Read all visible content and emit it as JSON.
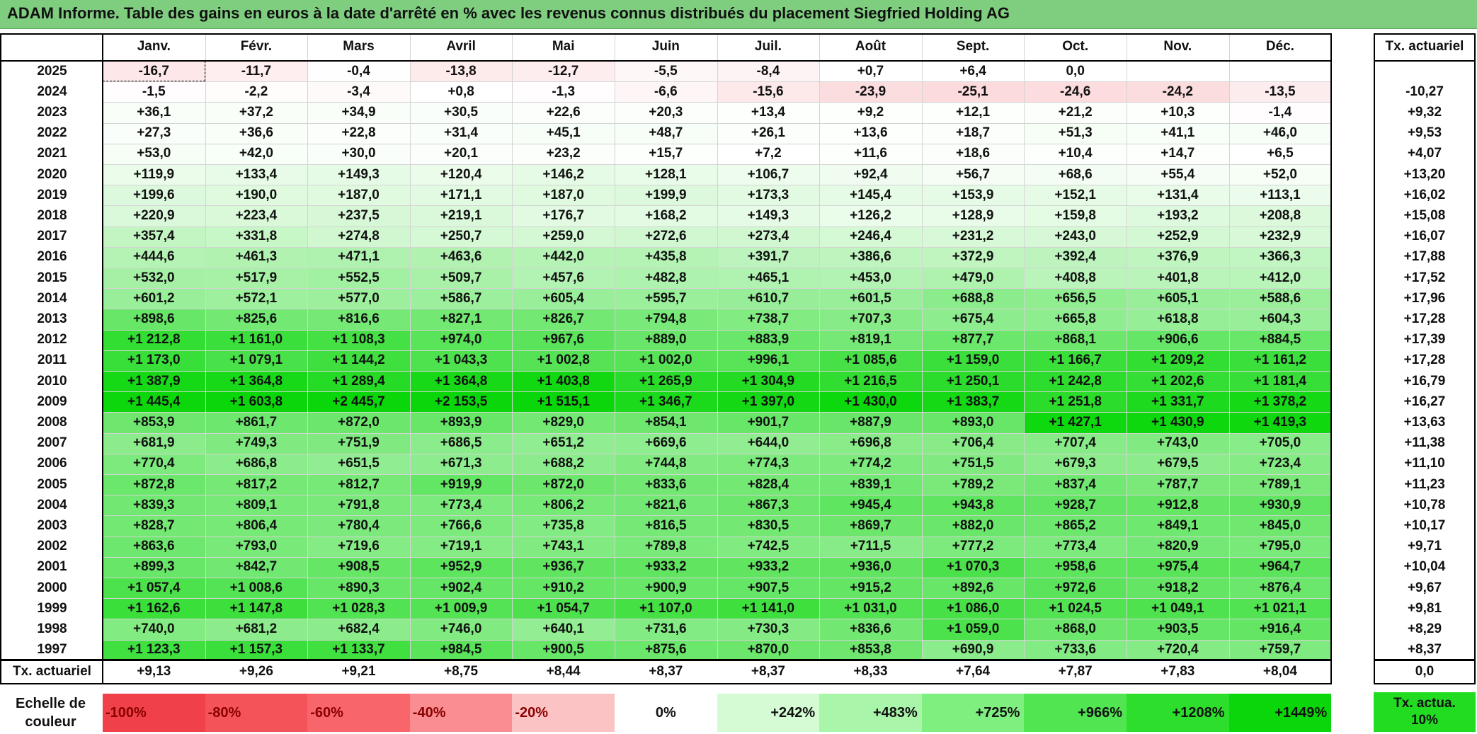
{
  "title": "ADAM Informe. Table des gains en euros à la date d'arrêté en % avec les revenus connus distribués du placement Siegfried Holding AG",
  "chart_data": {
    "type": "heatmap",
    "months": [
      "Janv.",
      "Févr.",
      "Mars",
      "Avril",
      "Mai",
      "Juin",
      "Juil.",
      "Août",
      "Sept.",
      "Oct.",
      "Nov.",
      "Déc."
    ],
    "rate_header": "Tx. actuariel",
    "rows": [
      {
        "year": "2025",
        "values": [
          "-16,7",
          "-11,7",
          "-0,4",
          "-13,8",
          "-12,7",
          "-5,5",
          "-8,4",
          "+0,7",
          "+6,4",
          "0,0",
          "",
          ""
        ],
        "rate": ""
      },
      {
        "year": "2024",
        "values": [
          "-1,5",
          "-2,2",
          "-3,4",
          "+0,8",
          "-1,3",
          "-6,6",
          "-15,6",
          "-23,9",
          "-25,1",
          "-24,6",
          "-24,2",
          "-13,5"
        ],
        "rate": "-10,27"
      },
      {
        "year": "2023",
        "values": [
          "+36,1",
          "+37,2",
          "+34,9",
          "+30,5",
          "+22,6",
          "+20,3",
          "+13,4",
          "+9,2",
          "+12,1",
          "+21,2",
          "+10,3",
          "-1,4"
        ],
        "rate": "+9,32"
      },
      {
        "year": "2022",
        "values": [
          "+27,3",
          "+36,6",
          "+22,8",
          "+31,4",
          "+45,1",
          "+48,7",
          "+26,1",
          "+13,6",
          "+18,7",
          "+51,3",
          "+41,1",
          "+46,0"
        ],
        "rate": "+9,53"
      },
      {
        "year": "2021",
        "values": [
          "+53,0",
          "+42,0",
          "+30,0",
          "+20,1",
          "+23,2",
          "+15,7",
          "+7,2",
          "+11,6",
          "+18,6",
          "+10,4",
          "+14,7",
          "+6,5"
        ],
        "rate": "+4,07"
      },
      {
        "year": "2020",
        "values": [
          "+119,9",
          "+133,4",
          "+149,3",
          "+120,4",
          "+146,2",
          "+128,1",
          "+106,7",
          "+92,4",
          "+56,7",
          "+68,6",
          "+55,4",
          "+52,0"
        ],
        "rate": "+13,20"
      },
      {
        "year": "2019",
        "values": [
          "+199,6",
          "+190,0",
          "+187,0",
          "+171,1",
          "+187,0",
          "+199,9",
          "+173,3",
          "+145,4",
          "+153,9",
          "+152,1",
          "+131,4",
          "+113,1"
        ],
        "rate": "+16,02"
      },
      {
        "year": "2018",
        "values": [
          "+220,9",
          "+223,4",
          "+237,5",
          "+219,1",
          "+176,7",
          "+168,2",
          "+149,3",
          "+126,2",
          "+128,9",
          "+159,8",
          "+193,2",
          "+208,8"
        ],
        "rate": "+15,08"
      },
      {
        "year": "2017",
        "values": [
          "+357,4",
          "+331,8",
          "+274,8",
          "+250,7",
          "+259,0",
          "+272,6",
          "+273,4",
          "+246,4",
          "+231,2",
          "+243,0",
          "+252,9",
          "+232,9"
        ],
        "rate": "+16,07"
      },
      {
        "year": "2016",
        "values": [
          "+444,6",
          "+461,3",
          "+471,1",
          "+463,6",
          "+442,0",
          "+435,8",
          "+391,7",
          "+386,6",
          "+372,9",
          "+392,4",
          "+376,9",
          "+366,3"
        ],
        "rate": "+17,88"
      },
      {
        "year": "2015",
        "values": [
          "+532,0",
          "+517,9",
          "+552,5",
          "+509,7",
          "+457,6",
          "+482,8",
          "+465,1",
          "+453,0",
          "+479,0",
          "+408,8",
          "+401,8",
          "+412,0"
        ],
        "rate": "+17,52"
      },
      {
        "year": "2014",
        "values": [
          "+601,2",
          "+572,1",
          "+577,0",
          "+586,7",
          "+605,4",
          "+595,7",
          "+610,7",
          "+601,5",
          "+688,8",
          "+656,5",
          "+605,1",
          "+588,6"
        ],
        "rate": "+17,96"
      },
      {
        "year": "2013",
        "values": [
          "+898,6",
          "+825,6",
          "+816,6",
          "+827,1",
          "+826,7",
          "+794,8",
          "+738,7",
          "+707,3",
          "+675,4",
          "+665,8",
          "+618,8",
          "+604,3"
        ],
        "rate": "+17,28"
      },
      {
        "year": "2012",
        "values": [
          "+1 212,8",
          "+1 161,0",
          "+1 108,3",
          "+974,0",
          "+967,6",
          "+889,0",
          "+883,9",
          "+819,1",
          "+877,7",
          "+868,1",
          "+906,6",
          "+884,5"
        ],
        "rate": "+17,39"
      },
      {
        "year": "2011",
        "values": [
          "+1 173,0",
          "+1 079,1",
          "+1 144,2",
          "+1 043,3",
          "+1 002,8",
          "+1 002,0",
          "+996,1",
          "+1 085,6",
          "+1 159,0",
          "+1 166,7",
          "+1 209,2",
          "+1 161,2"
        ],
        "rate": "+17,28"
      },
      {
        "year": "2010",
        "values": [
          "+1 387,9",
          "+1 364,8",
          "+1 289,4",
          "+1 364,8",
          "+1 403,8",
          "+1 265,9",
          "+1 304,9",
          "+1 216,5",
          "+1 250,1",
          "+1 242,8",
          "+1 202,6",
          "+1 181,4"
        ],
        "rate": "+16,79"
      },
      {
        "year": "2009",
        "values": [
          "+1 445,4",
          "+1 603,8",
          "+2 445,7",
          "+2 153,5",
          "+1 515,1",
          "+1 346,7",
          "+1 397,0",
          "+1 430,0",
          "+1 383,7",
          "+1 251,8",
          "+1 331,7",
          "+1 378,2"
        ],
        "rate": "+16,27"
      },
      {
        "year": "2008",
        "values": [
          "+853,9",
          "+861,7",
          "+872,0",
          "+893,9",
          "+829,0",
          "+854,1",
          "+901,7",
          "+887,9",
          "+893,0",
          "+1 427,1",
          "+1 430,9",
          "+1 419,3"
        ],
        "rate": "+13,63"
      },
      {
        "year": "2007",
        "values": [
          "+681,9",
          "+749,3",
          "+751,9",
          "+686,5",
          "+651,2",
          "+669,6",
          "+644,0",
          "+696,8",
          "+706,4",
          "+707,4",
          "+743,0",
          "+705,0"
        ],
        "rate": "+11,38"
      },
      {
        "year": "2006",
        "values": [
          "+770,4",
          "+686,8",
          "+651,5",
          "+671,3",
          "+688,2",
          "+744,8",
          "+774,3",
          "+774,2",
          "+751,5",
          "+679,3",
          "+679,5",
          "+723,4"
        ],
        "rate": "+11,10"
      },
      {
        "year": "2005",
        "values": [
          "+872,8",
          "+817,2",
          "+812,7",
          "+919,9",
          "+872,0",
          "+833,6",
          "+828,4",
          "+839,1",
          "+789,2",
          "+837,4",
          "+787,7",
          "+789,1"
        ],
        "rate": "+11,23"
      },
      {
        "year": "2004",
        "values": [
          "+839,3",
          "+809,1",
          "+791,8",
          "+773,4",
          "+806,2",
          "+821,6",
          "+867,3",
          "+945,4",
          "+943,8",
          "+928,7",
          "+912,8",
          "+930,9"
        ],
        "rate": "+10,78"
      },
      {
        "year": "2003",
        "values": [
          "+828,7",
          "+806,4",
          "+780,4",
          "+766,6",
          "+735,8",
          "+816,5",
          "+830,5",
          "+869,7",
          "+882,0",
          "+865,2",
          "+849,1",
          "+845,0"
        ],
        "rate": "+10,17"
      },
      {
        "year": "2002",
        "values": [
          "+863,6",
          "+793,0",
          "+719,6",
          "+719,1",
          "+743,1",
          "+789,8",
          "+742,5",
          "+711,5",
          "+777,2",
          "+773,4",
          "+820,9",
          "+795,0"
        ],
        "rate": "+9,71"
      },
      {
        "year": "2001",
        "values": [
          "+899,3",
          "+842,7",
          "+908,5",
          "+952,9",
          "+936,7",
          "+933,2",
          "+933,2",
          "+936,0",
          "+1 070,3",
          "+958,6",
          "+975,4",
          "+964,7"
        ],
        "rate": "+10,04"
      },
      {
        "year": "2000",
        "values": [
          "+1 057,4",
          "+1 008,6",
          "+890,3",
          "+902,4",
          "+910,2",
          "+900,9",
          "+907,5",
          "+915,2",
          "+892,6",
          "+972,6",
          "+918,2",
          "+876,4"
        ],
        "rate": "+9,67"
      },
      {
        "year": "1999",
        "values": [
          "+1 162,6",
          "+1 147,8",
          "+1 028,3",
          "+1 009,9",
          "+1 054,7",
          "+1 107,0",
          "+1 141,0",
          "+1 031,0",
          "+1 086,0",
          "+1 024,5",
          "+1 049,1",
          "+1 021,1"
        ],
        "rate": "+9,81"
      },
      {
        "year": "1998",
        "values": [
          "+740,0",
          "+681,2",
          "+682,4",
          "+746,0",
          "+640,1",
          "+731,6",
          "+730,3",
          "+836,6",
          "+1 059,0",
          "+868,0",
          "+903,5",
          "+916,4"
        ],
        "rate": "+8,29"
      },
      {
        "year": "1997",
        "values": [
          "+1 123,3",
          "+1 157,3",
          "+1 133,7",
          "+984,5",
          "+900,5",
          "+875,6",
          "+870,0",
          "+853,8",
          "+690,9",
          "+733,6",
          "+720,4",
          "+759,7"
        ],
        "rate": "+8,37"
      }
    ],
    "footer": {
      "label": "Tx. actuariel",
      "values": [
        "+9,13",
        "+9,26",
        "+9,21",
        "+8,75",
        "+8,44",
        "+8,37",
        "+8,37",
        "+8,33",
        "+7,64",
        "+7,87",
        "+7,83",
        "+8,04"
      ],
      "rate": "0,0"
    },
    "color_scale": {
      "label": "Echelle de couleur",
      "steps": [
        {
          "label": "-100%",
          "color": "#f0414a"
        },
        {
          "label": "-80%",
          "color": "#f5535a"
        },
        {
          "label": "-60%",
          "color": "#f8666c"
        },
        {
          "label": "-40%",
          "color": "#fa8d91"
        },
        {
          "label": "-20%",
          "color": "#fcc3c5"
        },
        {
          "label": "0%",
          "color": "#ffffff"
        },
        {
          "label": "+242%",
          "color": "#d4fbd4"
        },
        {
          "label": "+483%",
          "color": "#a9f5a9"
        },
        {
          "label": "+725%",
          "color": "#7ff07f"
        },
        {
          "label": "+966%",
          "color": "#52e552"
        },
        {
          "label": "+1208%",
          "color": "#2dde2d"
        },
        {
          "label": "+1449%",
          "color": "#0ad70a"
        }
      ],
      "rate_label": "Tx. actua. 10%",
      "rate_color": "#22dc22"
    }
  }
}
